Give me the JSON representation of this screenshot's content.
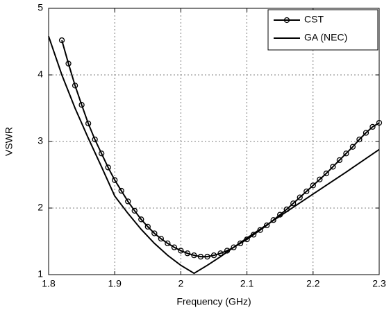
{
  "chart_data": {
    "type": "line",
    "x_label": "Frequency (GHz)",
    "y_label": "VSWR",
    "xlim": [
      1.8,
      2.3
    ],
    "ylim": [
      1,
      5
    ],
    "xticks": [
      1.8,
      1.9,
      2,
      2.1,
      2.2,
      2.3
    ],
    "yticks": [
      1,
      2,
      3,
      4,
      5
    ],
    "grid": true,
    "legend": "upper right",
    "series": [
      {
        "name": "CST",
        "color": "#000000",
        "marker": true,
        "x": [
          1.82,
          1.83,
          1.84,
          1.85,
          1.86,
          1.87,
          1.88,
          1.89,
          1.9,
          1.91,
          1.92,
          1.93,
          1.94,
          1.95,
          1.96,
          1.97,
          1.98,
          1.99,
          2.0,
          2.01,
          2.02,
          2.03,
          2.04,
          2.05,
          2.06,
          2.07,
          2.08,
          2.09,
          2.1,
          2.11,
          2.12,
          2.13,
          2.14,
          2.15,
          2.16,
          2.17,
          2.18,
          2.19,
          2.2,
          2.21,
          2.22,
          2.23,
          2.24,
          2.25,
          2.26,
          2.27,
          2.28,
          2.29,
          2.3
        ],
        "values": [
          4.52,
          4.17,
          3.84,
          3.55,
          3.27,
          3.03,
          2.82,
          2.61,
          2.42,
          2.26,
          2.1,
          1.96,
          1.83,
          1.72,
          1.62,
          1.54,
          1.47,
          1.41,
          1.36,
          1.32,
          1.29,
          1.27,
          1.27,
          1.29,
          1.32,
          1.36,
          1.41,
          1.47,
          1.53,
          1.6,
          1.67,
          1.74,
          1.82,
          1.9,
          1.98,
          2.07,
          2.16,
          2.25,
          2.34,
          2.43,
          2.52,
          2.62,
          2.72,
          2.82,
          2.92,
          3.03,
          3.13,
          3.22,
          3.28
        ]
      },
      {
        "name": "GA (NEC)",
        "color": "#000000",
        "marker": false,
        "x": [
          1.8,
          1.82,
          1.84,
          1.86,
          1.88,
          1.9,
          1.92,
          1.94,
          1.96,
          1.98,
          2.0,
          2.02,
          2.04,
          2.06,
          2.1,
          2.15,
          2.2,
          2.25,
          2.3
        ],
        "values": [
          4.58,
          4.0,
          3.5,
          3.05,
          2.62,
          2.18,
          1.92,
          1.68,
          1.47,
          1.29,
          1.14,
          1.02,
          1.14,
          1.27,
          1.55,
          1.88,
          2.21,
          2.54,
          2.88
        ]
      }
    ]
  }
}
